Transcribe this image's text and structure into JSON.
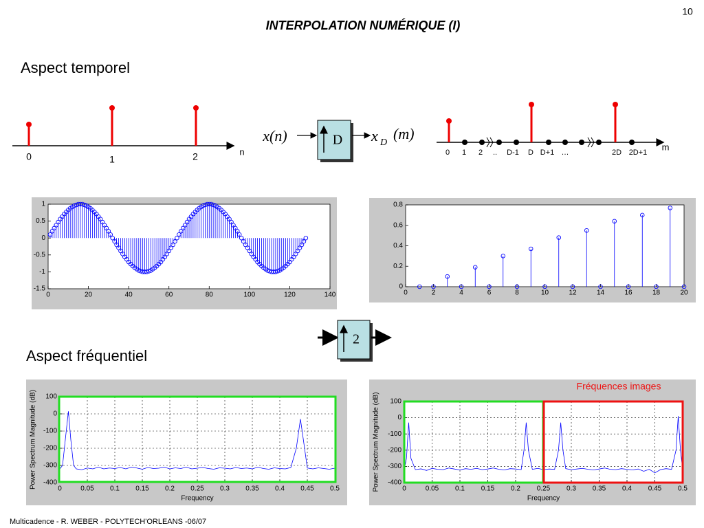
{
  "header": {
    "title": "INTERPOLATION NUMÉRIQUE (I)",
    "page": "10"
  },
  "sections": {
    "time": "Aspect temporel",
    "frequency": "Aspect fréquentiel"
  },
  "diagram": {
    "input": "x(n)",
    "factor": "D",
    "output": {
      "symbol": "x",
      "subscript": "D",
      "argument": "(m)"
    },
    "input_axis": {
      "labels": [
        "0",
        "1",
        "2"
      ],
      "name": "n"
    },
    "output_axis": {
      "labels": [
        "0",
        "1",
        "2",
        "..",
        "D-1",
        "D",
        "D+1",
        "…",
        "2D",
        "2D+1"
      ],
      "name": "m"
    }
  },
  "upsampler": {
    "factor": "2"
  },
  "annotation": "Fréquences images",
  "footer": "Multicadence - R. WEBER - POLYTECH'ORLEANS -06/07",
  "chart_data": [
    {
      "type": "stem",
      "color": "#0000ff",
      "x": [
        1,
        2,
        3,
        4,
        5,
        6,
        7,
        8,
        9,
        10,
        11,
        12,
        13,
        14,
        15,
        16,
        17,
        18,
        19,
        20,
        21,
        22,
        23,
        24,
        25,
        26,
        27,
        28,
        29,
        30,
        31,
        32,
        33,
        34,
        35,
        36,
        37,
        38,
        39,
        40,
        41,
        42,
        43,
        44,
        45,
        46,
        47,
        48,
        49,
        50,
        51,
        52,
        53,
        54,
        55,
        56,
        57,
        58,
        59,
        60,
        61,
        62,
        63,
        64,
        65,
        66,
        67,
        68,
        69,
        70,
        71,
        72,
        73,
        74,
        75,
        76,
        77,
        78,
        79,
        80,
        81,
        82,
        83,
        84,
        85,
        86,
        87,
        88,
        89,
        90,
        91,
        92,
        93,
        94,
        95,
        96,
        97,
        98,
        99,
        100,
        101,
        102,
        103,
        104,
        105,
        106,
        107,
        108,
        109,
        110,
        111,
        112,
        113,
        114,
        115,
        116,
        117,
        118,
        119,
        120,
        121,
        122,
        123,
        124,
        125,
        126,
        127,
        128
      ],
      "values": [
        0.1,
        0.2,
        0.29,
        0.38,
        0.47,
        0.56,
        0.63,
        0.71,
        0.77,
        0.83,
        0.88,
        0.92,
        0.96,
        0.98,
        1,
        1,
        1,
        0.98,
        0.96,
        0.92,
        0.88,
        0.83,
        0.77,
        0.71,
        0.63,
        0.56,
        0.47,
        0.38,
        0.29,
        0.2,
        0.1,
        0,
        -0.1,
        -0.2,
        -0.29,
        -0.38,
        -0.47,
        -0.56,
        -0.63,
        -0.71,
        -0.77,
        -0.83,
        -0.88,
        -0.92,
        -0.96,
        -0.98,
        -1,
        -1,
        -1,
        -0.98,
        -0.96,
        -0.92,
        -0.88,
        -0.83,
        -0.77,
        -0.71,
        -0.63,
        -0.56,
        -0.47,
        -0.38,
        -0.29,
        -0.2,
        -0.1,
        0,
        0.1,
        0.2,
        0.29,
        0.38,
        0.47,
        0.56,
        0.63,
        0.71,
        0.77,
        0.83,
        0.88,
        0.92,
        0.96,
        0.98,
        1,
        1,
        1,
        0.98,
        0.96,
        0.92,
        0.88,
        0.83,
        0.77,
        0.71,
        0.63,
        0.56,
        0.47,
        0.38,
        0.29,
        0.2,
        0.1,
        0,
        -0.1,
        -0.2,
        -0.29,
        -0.38,
        -0.47,
        -0.56,
        -0.63,
        -0.71,
        -0.77,
        -0.83,
        -0.88,
        -0.92,
        -0.96,
        -0.98,
        -1,
        -1,
        -1,
        -0.98,
        -0.96,
        -0.92,
        -0.88,
        -0.83,
        -0.77,
        -0.71,
        -0.63,
        -0.56,
        -0.47,
        -0.38,
        -0.29,
        -0.2,
        -0.1,
        0
      ],
      "xlim": [
        0,
        140
      ],
      "xticks": [
        0,
        20,
        40,
        60,
        80,
        100,
        120,
        140
      ],
      "ylim": [
        -1.5,
        1
      ],
      "yticks": [
        -1.5,
        -1,
        -0.5,
        0,
        0.5,
        1
      ],
      "grid": false
    },
    {
      "type": "stem",
      "color": "#0000ff",
      "x": [
        1,
        2,
        3,
        4,
        5,
        6,
        7,
        8,
        9,
        10,
        11,
        12,
        13,
        14,
        15,
        16,
        17,
        18,
        19,
        20
      ],
      "values": [
        0,
        0,
        0.1,
        0,
        0.19,
        0,
        0.3,
        0,
        0.37,
        0,
        0.48,
        0,
        0.55,
        0,
        0.64,
        0,
        0.7,
        0,
        0.77,
        0
      ],
      "xlim": [
        0,
        20
      ],
      "xticks": [
        0,
        2,
        4,
        6,
        8,
        10,
        12,
        14,
        16,
        18,
        20
      ],
      "ylim": [
        0,
        0.8
      ],
      "yticks": [
        0,
        0.2,
        0.4,
        0.6,
        0.8
      ],
      "grid": false
    },
    {
      "type": "line",
      "color": "#0000ff",
      "xlabel": "Frequency",
      "ylabel": "Power Spectrum Magnitude (dB)",
      "x": [
        0,
        0.005,
        0.01,
        0.0156,
        0.02,
        0.025,
        0.03,
        0.04,
        0.05,
        0.06,
        0.07,
        0.08,
        0.09,
        0.1,
        0.11,
        0.12,
        0.13,
        0.14,
        0.15,
        0.16,
        0.17,
        0.18,
        0.19,
        0.2,
        0.21,
        0.22,
        0.23,
        0.24,
        0.25,
        0.26,
        0.27,
        0.28,
        0.29,
        0.3,
        0.31,
        0.32,
        0.33,
        0.34,
        0.35,
        0.36,
        0.37,
        0.38,
        0.39,
        0.4,
        0.41,
        0.42,
        0.43,
        0.4375,
        0.445,
        0.45,
        0.46,
        0.47,
        0.48,
        0.49,
        0.5
      ],
      "values": [
        -320,
        -300,
        -150,
        15,
        -150,
        -300,
        -320,
        -325,
        -315,
        -320,
        -310,
        -320,
        -315,
        -318,
        -312,
        -320,
        -310,
        -315,
        -322,
        -312,
        -318,
        -316,
        -310,
        -320,
        -314,
        -318,
        -310,
        -320,
        -316,
        -312,
        -318,
        -322,
        -314,
        -316,
        -320,
        -312,
        -318,
        -315,
        -320,
        -310,
        -318,
        -322,
        -314,
        -318,
        -320,
        -312,
        -200,
        -30,
        -200,
        -315,
        -320,
        -314,
        -318,
        -322,
        -316
      ],
      "xlim": [
        0,
        0.5
      ],
      "xticks": [
        0,
        0.05,
        0.1,
        0.15,
        0.2,
        0.25,
        0.3,
        0.35,
        0.4,
        0.45,
        0.5
      ],
      "ylim": [
        -400,
        100
      ],
      "yticks": [
        -400,
        -300,
        -200,
        -100,
        0,
        100
      ],
      "grid": true
    },
    {
      "type": "line",
      "color": "#0000ff",
      "xlabel": "Frequency",
      "ylabel": "Power Spectrum Magnitude (dB)",
      "x": [
        0,
        0.004,
        0.008,
        0.012,
        0.02,
        0.03,
        0.04,
        0.05,
        0.06,
        0.07,
        0.08,
        0.09,
        0.1,
        0.11,
        0.12,
        0.13,
        0.14,
        0.15,
        0.16,
        0.17,
        0.18,
        0.19,
        0.2,
        0.21,
        0.215,
        0.219,
        0.223,
        0.23,
        0.24,
        0.25,
        0.26,
        0.27,
        0.277,
        0.281,
        0.285,
        0.29,
        0.3,
        0.31,
        0.32,
        0.33,
        0.34,
        0.35,
        0.36,
        0.37,
        0.38,
        0.39,
        0.4,
        0.41,
        0.42,
        0.43,
        0.44,
        0.45,
        0.46,
        0.47,
        0.48,
        0.488,
        0.492,
        0.496,
        0.5
      ],
      "values": [
        -320,
        -250,
        -30,
        -250,
        -320,
        -315,
        -325,
        -312,
        -318,
        -320,
        -310,
        -316,
        -322,
        -314,
        -318,
        -312,
        -320,
        -316,
        -310,
        -318,
        -322,
        -314,
        -316,
        -320,
        -200,
        -30,
        -200,
        -318,
        -312,
        -320,
        -316,
        -318,
        -200,
        -30,
        -200,
        -314,
        -320,
        -316,
        -312,
        -318,
        -322,
        -316,
        -310,
        -318,
        -320,
        -314,
        -318,
        -322,
        -316,
        -330,
        -318,
        -340,
        -320,
        -314,
        -318,
        -200,
        10,
        -200,
        -320
      ],
      "xlim": [
        0,
        0.5
      ],
      "xticks": [
        0,
        0.05,
        0.1,
        0.15,
        0.2,
        0.25,
        0.3,
        0.35,
        0.4,
        0.45,
        0.5
      ],
      "ylim": [
        -400,
        100
      ],
      "yticks": [
        -400,
        -300,
        -200,
        -100,
        0,
        100
      ],
      "grid": true
    }
  ]
}
